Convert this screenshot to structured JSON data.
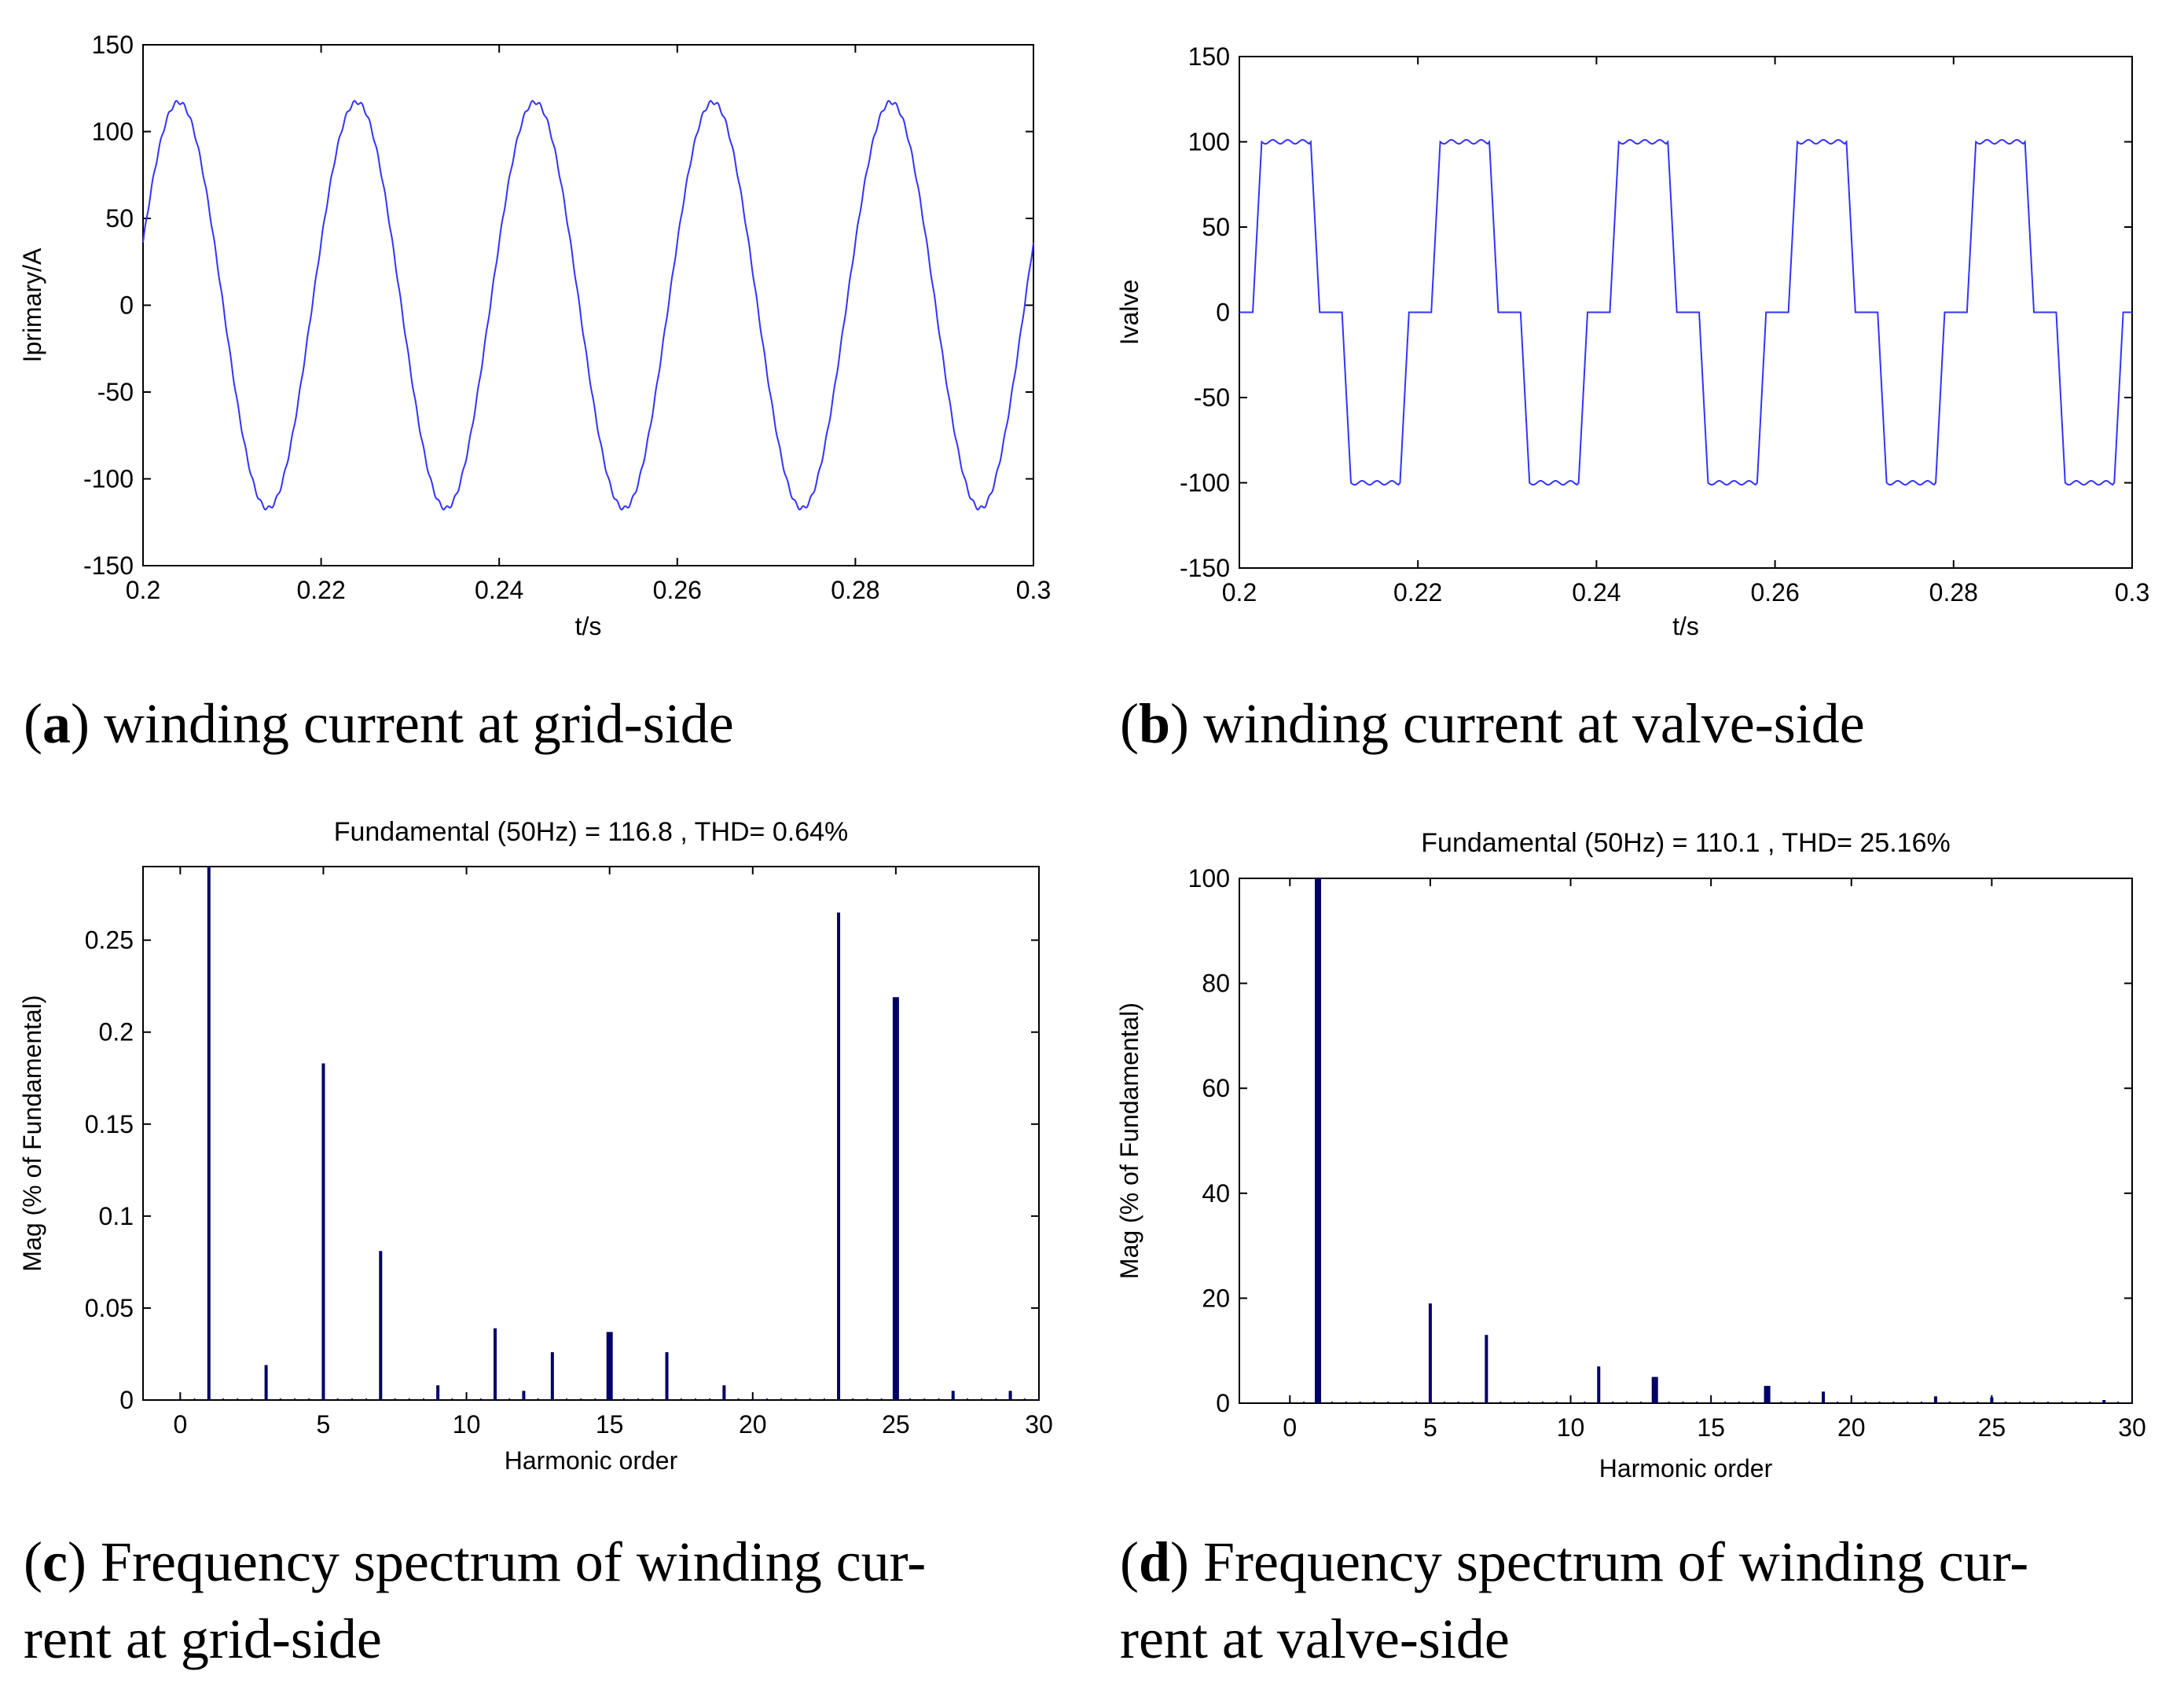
{
  "panels": [
    {
      "id": "a",
      "caption_letter": "a",
      "caption_lines": [
        "winding current at grid-side"
      ],
      "chart_data": {
        "type": "line",
        "title": "",
        "xlabel": "t/s",
        "ylabel": "Iprimary/A",
        "xlim": [
          0.2,
          0.3
        ],
        "ylim": [
          -150,
          150
        ],
        "xticks": [
          0.2,
          0.22,
          0.24,
          0.26,
          0.28,
          0.3
        ],
        "xtick_labels": [
          "0.2",
          "0.22",
          "0.24",
          "0.26",
          "0.28",
          "0.3"
        ],
        "yticks": [
          150,
          100,
          50,
          0,
          -50,
          -100,
          -150
        ],
        "ytick_labels": [
          "150",
          "100",
          "50",
          "0",
          "-50",
          "-100",
          "-150"
        ],
        "grid": false,
        "series": [
          {
            "name": "Iprimary",
            "color": "#3333ff",
            "waveform": "sine",
            "amplitude": 117,
            "frequency_hz": 50,
            "phase_peak_t": 0.204
          }
        ]
      }
    },
    {
      "id": "b",
      "caption_letter": "b",
      "caption_lines": [
        "winding current at valve-side"
      ],
      "chart_data": {
        "type": "line",
        "title": "",
        "xlabel": "t/s",
        "ylabel": "Ivalve",
        "xlim": [
          0.2,
          0.3
        ],
        "ylim": [
          -150,
          150
        ],
        "xticks": [
          0.2,
          0.22,
          0.24,
          0.26,
          0.28,
          0.3
        ],
        "xtick_labels": [
          "0.2",
          "0.22",
          "0.24",
          "0.26",
          "0.28",
          "0.3"
        ],
        "yticks": [
          150,
          100,
          50,
          0,
          -50,
          -100,
          -150
        ],
        "ytick_labels": [
          "150",
          "100",
          "50",
          "0",
          "-50",
          "-100",
          "-150"
        ],
        "grid": false,
        "series": [
          {
            "name": "Ivalve",
            "color": "#3333ff",
            "waveform": "stepped-square",
            "level": 100,
            "frequency_hz": 50,
            "breakpoints": [
              [
                0.2,
                0
              ],
              [
                0.2015,
                0
              ],
              [
                0.2025,
                100
              ],
              [
                0.208,
                100
              ],
              [
                0.209,
                0
              ],
              [
                0.2115,
                0
              ],
              [
                0.2125,
                -100
              ],
              [
                0.218,
                -100
              ],
              [
                0.219,
                0
              ],
              [
                0.2215,
                0
              ],
              [
                0.2225,
                100
              ]
            ]
          }
        ]
      }
    },
    {
      "id": "c",
      "caption_letter": "c",
      "caption_lines": [
        "Frequency spectrum of winding cur-",
        "rent at grid-side"
      ],
      "chart_data": {
        "type": "bar",
        "title": "Fundamental (50Hz) = 116.8 , THD= 0.64%",
        "xlabel": "Harmonic order",
        "ylabel": "Mag (% of Fundamental)",
        "xlim": [
          -1.3,
          30
        ],
        "ylim": [
          0,
          0.29
        ],
        "xticks": [
          0,
          5,
          10,
          15,
          20,
          25,
          30
        ],
        "xtick_labels": [
          "0",
          "5",
          "10",
          "15",
          "20",
          "25",
          "30"
        ],
        "yticks": [
          0,
          0.05,
          0.1,
          0.15,
          0.2,
          0.25
        ],
        "ytick_labels": [
          "0",
          "0.05",
          "0.1",
          "0.15",
          "0.2",
          "0.25"
        ],
        "grid": false,
        "bar_color": "#000066",
        "bars": [
          {
            "h": 1,
            "value": 0.29,
            "width": "thin"
          },
          {
            "h": 3,
            "value": 0.019,
            "width": "thin"
          },
          {
            "h": 5,
            "value": 0.183,
            "width": "thin"
          },
          {
            "h": 7,
            "value": 0.081,
            "width": "thin"
          },
          {
            "h": 9,
            "value": 0.008,
            "width": "thin"
          },
          {
            "h": 11,
            "value": 0.039,
            "width": "thin"
          },
          {
            "h": 12,
            "value": 0.005,
            "width": "thin"
          },
          {
            "h": 13,
            "value": 0.026,
            "width": "thin"
          },
          {
            "h": 15,
            "value": 0.037,
            "width": "thick"
          },
          {
            "h": 17,
            "value": 0.026,
            "width": "thin"
          },
          {
            "h": 19,
            "value": 0.008,
            "width": "thin"
          },
          {
            "h": 23,
            "value": 0.265,
            "width": "thin"
          },
          {
            "h": 25,
            "value": 0.219,
            "width": "thick"
          },
          {
            "h": 27,
            "value": 0.005,
            "width": "thin"
          },
          {
            "h": 29,
            "value": 0.005,
            "width": "thin"
          }
        ]
      }
    },
    {
      "id": "d",
      "caption_letter": "d",
      "caption_lines": [
        "Frequency spectrum of winding cur-",
        "rent at valve-side"
      ],
      "chart_data": {
        "type": "bar",
        "title": "Fundamental (50Hz) = 110.1 , THD= 25.16%",
        "xlabel": "Harmonic order",
        "ylabel": "Mag (% of Fundamental)",
        "xlim": [
          -1.8,
          30
        ],
        "ylim": [
          0,
          100
        ],
        "xticks": [
          0,
          5,
          10,
          15,
          20,
          25,
          30
        ],
        "xtick_labels": [
          "0",
          "5",
          "10",
          "15",
          "20",
          "25",
          "30"
        ],
        "yticks": [
          0,
          20,
          40,
          60,
          80,
          100
        ],
        "ytick_labels": [
          "0",
          "20",
          "40",
          "60",
          "80",
          "100"
        ],
        "grid": false,
        "bar_color": "#000066",
        "bars": [
          {
            "h": 1,
            "value": 100,
            "width": "thick"
          },
          {
            "h": 5,
            "value": 19,
            "width": "thin"
          },
          {
            "h": 7,
            "value": 13,
            "width": "thin"
          },
          {
            "h": 11,
            "value": 7,
            "width": "thin"
          },
          {
            "h": 13,
            "value": 5,
            "width": "thick"
          },
          {
            "h": 17,
            "value": 3.3,
            "width": "thick"
          },
          {
            "h": 19,
            "value": 2.2,
            "width": "thin"
          },
          {
            "h": 23,
            "value": 1.3,
            "width": "thin"
          },
          {
            "h": 25,
            "value": 1.1,
            "width": "thin"
          },
          {
            "h": 29,
            "value": 0.6,
            "width": "thin"
          }
        ]
      }
    }
  ]
}
